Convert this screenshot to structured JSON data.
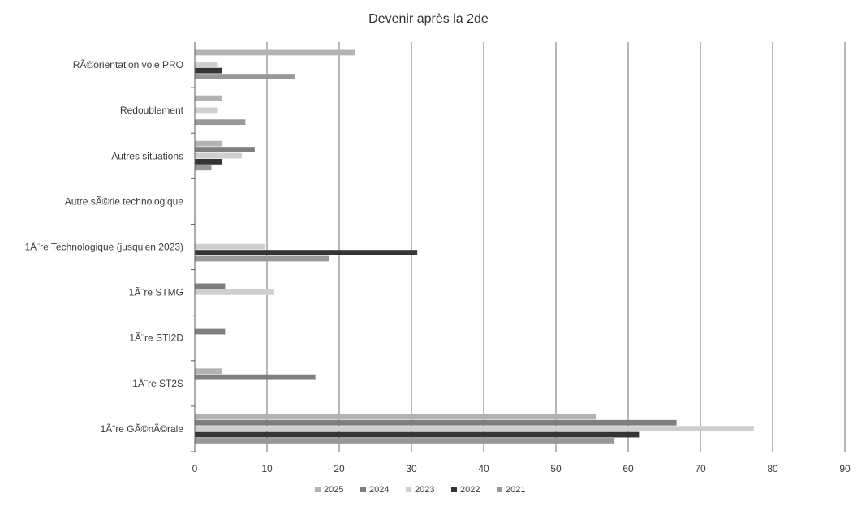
{
  "chart_data": {
    "type": "bar",
    "orientation": "horizontal",
    "title": "Devenir après la 2de",
    "xlabel": "",
    "ylabel": "",
    "xlim": [
      0,
      90
    ],
    "x_ticks": [
      0,
      10,
      20,
      30,
      40,
      50,
      60,
      70,
      80,
      90
    ],
    "grid": true,
    "legend_position": "bottom",
    "categories": [
      "RÃ©orientation voie PRO",
      "Redoublement",
      "Autres situations",
      "Autre sÃ©rie technologique",
      "1Ã¨re Technologique (jusqu'en 2023)",
      "1Ã¨re STMG",
      "1Ã¨re STI2D",
      "1Ã¨re ST2S",
      "1Ã¨re GÃ©nÃ©rale"
    ],
    "series": [
      {
        "name": "2025",
        "color": "#b3b3b3",
        "values": [
          22.2,
          3.7,
          3.7,
          0,
          0,
          0,
          0,
          3.7,
          55.6
        ]
      },
      {
        "name": "2024",
        "color": "#7f7f7f",
        "values": [
          0,
          0,
          8.3,
          0,
          0,
          4.2,
          4.2,
          16.7,
          66.7
        ]
      },
      {
        "name": "2023",
        "color": "#cfcfcf",
        "values": [
          3.2,
          3.2,
          6.5,
          0,
          9.7,
          11.0,
          0,
          0,
          77.4
        ]
      },
      {
        "name": "2022",
        "color": "#353535",
        "values": [
          3.8,
          0,
          3.8,
          0,
          30.8,
          0,
          0,
          0,
          61.5
        ]
      },
      {
        "name": "2021",
        "color": "#989898",
        "values": [
          13.9,
          7.0,
          2.3,
          0,
          18.6,
          0,
          0,
          0,
          58.1
        ]
      }
    ]
  }
}
